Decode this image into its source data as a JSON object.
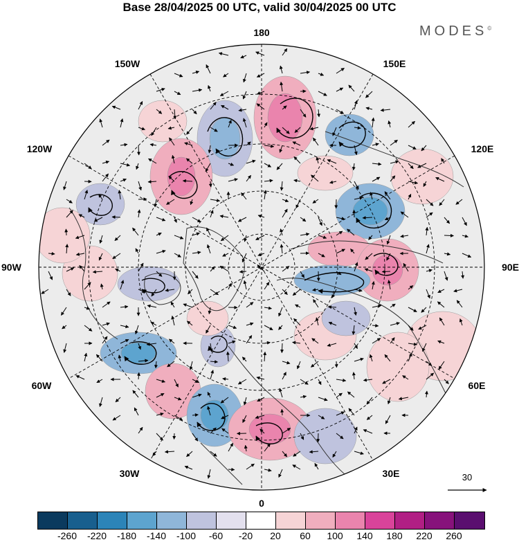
{
  "title": "Base 28/04/2025 00 UTC, valid 30/04/2025 00 UTC",
  "brand": "MODES",
  "brand_mark": "©",
  "longitude_labels": {
    "top": "180",
    "bottom": "0",
    "left": "90W",
    "right": "90E",
    "upper_left_150": "150W",
    "upper_left_120": "120W",
    "upper_right_150": "150E",
    "upper_right_120": "120E",
    "lower_left_60": "60W",
    "lower_left_30": "30W",
    "lower_right_60": "60E",
    "lower_right_30": "30E"
  },
  "reference_vector_label": "30",
  "colorbar": {
    "colors": [
      "#0b3a5e",
      "#185f8e",
      "#2c84b8",
      "#5da4cf",
      "#8fb6d9",
      "#bfc3de",
      "#e3e0ee",
      "#ffffff",
      "#f6d4d6",
      "#f0aebe",
      "#ea84ad",
      "#d9439a",
      "#b11f84",
      "#87127b",
      "#5a0e6f"
    ],
    "labels": [
      "-260",
      "-220",
      "-180",
      "-140",
      "-100",
      "-60",
      "-20",
      "20",
      "60",
      "100",
      "140",
      "180",
      "220",
      "260"
    ]
  }
}
